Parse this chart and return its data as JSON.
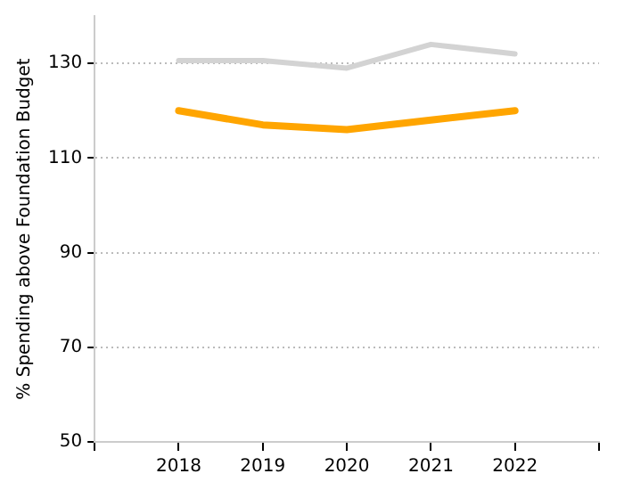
{
  "chart_data": {
    "type": "line",
    "ylabel": "% Spending above Foundation Budget",
    "x": [
      2018,
      2019,
      2020,
      2021,
      2022
    ],
    "series": [
      {
        "color": "#d3d3d3",
        "values": [
          130.6,
          130.6,
          129,
          134,
          132
        ]
      },
      {
        "color": "#ffa500",
        "values": [
          120,
          117,
          116,
          118,
          120
        ]
      }
    ],
    "xlim": [
      2017,
      2023
    ],
    "xticks": [
      {
        "value": 2017,
        "label": null
      },
      2018,
      2019,
      2020,
      2021,
      2022,
      {
        "value": 2023,
        "label": null
      }
    ],
    "ylim": [
      50,
      140
    ],
    "yticks": [
      50,
      70,
      90,
      110,
      130
    ],
    "grid": "y",
    "legend": false,
    "marker": "none",
    "line_style": "solid"
  }
}
